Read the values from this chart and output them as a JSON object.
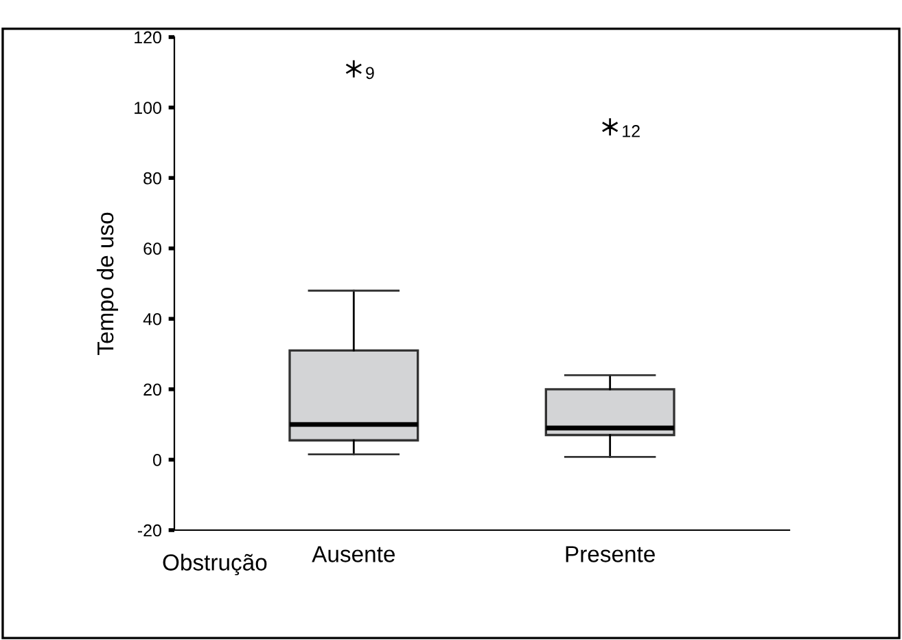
{
  "chart_data": {
    "type": "box",
    "xlabel": "Obstrução",
    "ylabel": "Tempo de uso",
    "categories": [
      "Ausente",
      "Presente"
    ],
    "boxes": [
      {
        "low": 1.5,
        "q1": 5.5,
        "median": 10,
        "q3": 31,
        "high": 48,
        "outliers": [
          111
        ]
      },
      {
        "low": 0.8,
        "q1": 7,
        "median": 9,
        "q3": 20,
        "high": 24,
        "outliers": [
          94.5
        ]
      }
    ],
    "color": "#d3d4d6",
    "ylim": [
      -20,
      120
    ],
    "yticks": [
      -20,
      0,
      20,
      40,
      60,
      80,
      100,
      120
    ],
    "grid": false,
    "annotations": [
      "9",
      "12"
    ]
  }
}
